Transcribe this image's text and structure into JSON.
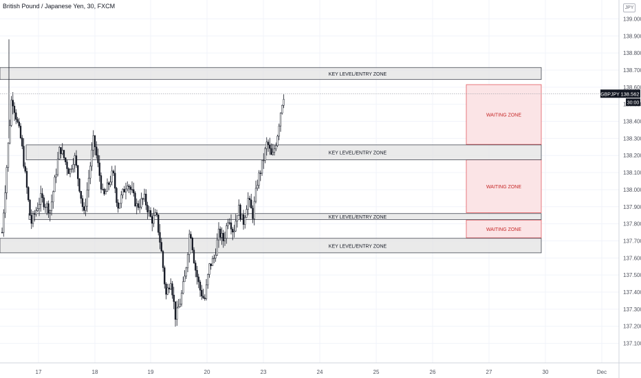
{
  "header": {
    "title": "British Pound / Japanese Yen, 30, FXCM",
    "currency_badge": "JPY"
  },
  "colors": {
    "candle": "#131722",
    "grid": "#f0f3fa",
    "zone_fill": "#e3e3e3",
    "zone_border": "#434651",
    "waiting_fill": "#fbe4e6",
    "waiting_border": "#e2595f",
    "waiting_text": "#c62828",
    "price_tag": "#131722",
    "axis_text": "#50535e"
  },
  "chart_data": {
    "type": "candlestick",
    "symbol_label": "GBPJPY",
    "last_price": "138.562",
    "countdown": "30:00",
    "x_ticks": [
      "17",
      "18",
      "19",
      "20",
      "23",
      "24",
      "25",
      "26",
      "27",
      "30",
      "Dec"
    ],
    "y_ticks": [
      "139.000",
      "138.900",
      "138.800",
      "138.700",
      "138.600",
      "138.500",
      "138.400",
      "138.300",
      "138.200",
      "138.100",
      "138.000",
      "137.900",
      "137.800",
      "137.700",
      "137.600",
      "137.500",
      "137.400",
      "137.300",
      "137.200",
      "137.100"
    ],
    "ylim": [
      137.05,
      139.03
    ],
    "grid": true,
    "price_path": [
      [
        0,
        137.75
      ],
      [
        4,
        138.55
      ],
      [
        8,
        138.28
      ],
      [
        12,
        137.8
      ],
      [
        16,
        137.95
      ],
      [
        20,
        137.88
      ],
      [
        24,
        138.25
      ],
      [
        28,
        138.1
      ],
      [
        30,
        138.2
      ],
      [
        34,
        137.85
      ],
      [
        38,
        138.3
      ],
      [
        42,
        137.95
      ],
      [
        46,
        138.1
      ],
      [
        48,
        137.9
      ],
      [
        52,
        138.05
      ],
      [
        56,
        137.9
      ],
      [
        59,
        137.95
      ],
      [
        62,
        137.82
      ],
      [
        64,
        137.85
      ],
      [
        66,
        137.65
      ],
      [
        68,
        137.38
      ],
      [
        70,
        137.48
      ],
      [
        72,
        137.25
      ],
      [
        74,
        137.35
      ],
      [
        76,
        137.5
      ],
      [
        78,
        137.78
      ],
      [
        80,
        137.55
      ],
      [
        82,
        137.42
      ],
      [
        84,
        137.35
      ],
      [
        86,
        137.55
      ],
      [
        88,
        137.6
      ],
      [
        90,
        137.75
      ],
      [
        92,
        137.7
      ],
      [
        94,
        137.85
      ],
      [
        96,
        137.75
      ],
      [
        98,
        137.9
      ],
      [
        100,
        137.8
      ],
      [
        102,
        137.95
      ],
      [
        104,
        137.85
      ],
      [
        106,
        138.05
      ],
      [
        108,
        138.15
      ],
      [
        110,
        138.28
      ],
      [
        112,
        138.18
      ],
      [
        114,
        138.3
      ],
      [
        116,
        138.5
      ],
      [
        117,
        138.562
      ]
    ],
    "time_span": 120,
    "zones": [
      {
        "label": "KEY LEVEL/ENTRY ZONE",
        "low": 138.645,
        "high": 138.715,
        "t0": 0,
        "t1": 154
      },
      {
        "label": "KEY LEVEL/ENTRY ZONE",
        "low": 138.175,
        "high": 138.262,
        "t0": 7,
        "t1": 154
      },
      {
        "label": "KEY LEVEL/ENTRY ZONE",
        "low": 137.825,
        "high": 137.86,
        "t0": 8,
        "t1": 154
      },
      {
        "label": "KEY LEVEL/ENTRY ZONE",
        "low": 137.63,
        "high": 137.715,
        "t0": 0,
        "t1": 154
      }
    ],
    "waiting_zones": [
      {
        "label": "WAITING ZONE",
        "low": 138.265,
        "high": 138.615,
        "t0": 100,
        "t1": 154
      },
      {
        "label": "WAITING ZONE",
        "low": 137.865,
        "high": 138.175,
        "t0": 100,
        "t1": 154
      },
      {
        "label": "WAITING ZONE",
        "low": 137.718,
        "high": 137.822,
        "t0": 100,
        "t1": 154
      }
    ]
  }
}
